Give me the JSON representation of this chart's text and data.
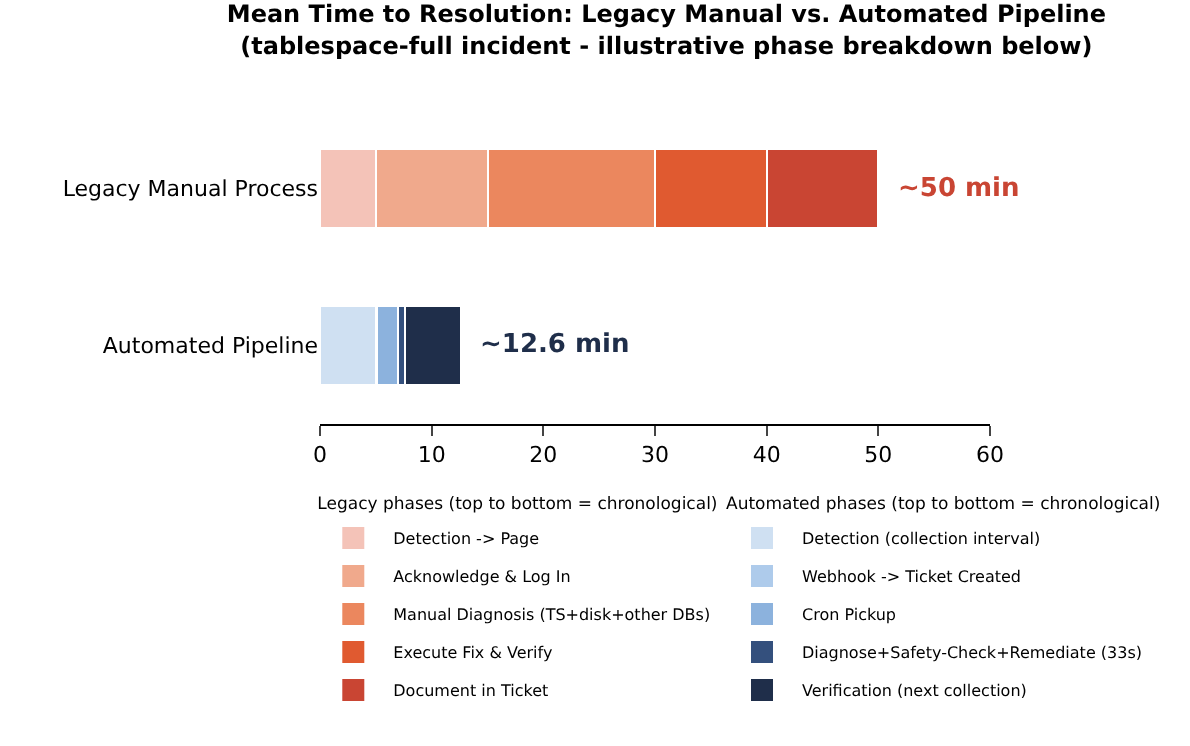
{
  "chart_data": {
    "type": "bar",
    "orientation": "horizontal",
    "stacked": true,
    "title": "Mean Time to Resolution: Legacy Manual vs. Automated Pipeline\n(tablespace-full incident - illustrative phase breakdown below)",
    "categories": [
      "Legacy Manual Process",
      "Automated Pipeline"
    ],
    "legend_title": [
      "Legacy phases (top to bottom = chronological)",
      "Automated phases (top to bottom = chronological)"
    ],
    "series": [
      {
        "name": "Detection -> Page",
        "color": "#f4c3b8",
        "values": [
          5,
          null
        ]
      },
      {
        "name": "Acknowledge & Log In",
        "color": "#f0a98c",
        "values": [
          10,
          null
        ]
      },
      {
        "name": "Manual Diagnosis (TS+disk+other DBs)",
        "color": "#eb875e",
        "values": [
          15,
          null
        ]
      },
      {
        "name": "Execute Fix & Verify",
        "color": "#e05a30",
        "values": [
          10,
          null
        ]
      },
      {
        "name": "Document in Ticket",
        "color": "#c94533",
        "values": [
          10,
          null
        ]
      },
      {
        "name": "Detection (collection interval)",
        "color": "#cfe0f2",
        "values": [
          null,
          5
        ]
      },
      {
        "name": "Webhook -> Ticket Created",
        "color": "#aecbeb",
        "values": [
          null,
          0.1
        ]
      },
      {
        "name": "Cron Pickup",
        "color": "#8cb2dd",
        "values": [
          null,
          1.9
        ]
      },
      {
        "name": "Diagnose+Safety-Check+Remediate (33s)",
        "color": "#34507d",
        "values": [
          null,
          0.6
        ]
      },
      {
        "name": "Verification (next collection)",
        "color": "#1f2e4a",
        "values": [
          null,
          5
        ]
      }
    ],
    "annotations": [
      {
        "text": "~50 min",
        "x": 50,
        "y": "Legacy Manual Process"
      },
      {
        "text": "~12.6 min",
        "x": 12.6,
        "y": "Automated Pipeline"
      }
    ],
    "xlim": [
      0,
      60
    ],
    "xticks": [
      0,
      10,
      20,
      30,
      40,
      50,
      60
    ],
    "grid": false,
    "legend": "bottom"
  }
}
